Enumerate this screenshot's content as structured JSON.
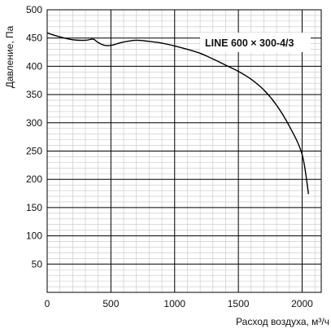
{
  "chart_data": {
    "type": "line",
    "title": "",
    "xlabel": "Расход воздуха, м³/ч",
    "ylabel": "Давление, Па",
    "xlim": [
      0,
      2150
    ],
    "ylim": [
      0,
      500
    ],
    "x_major_ticks": [
      0,
      500,
      1000,
      1500,
      2000
    ],
    "x_minor_step": 100,
    "y_major_ticks": [
      50,
      100,
      150,
      200,
      250,
      300,
      350,
      400,
      450,
      500
    ],
    "y_minor_step": 10,
    "x_tick_labels": [
      "0",
      "500",
      "1000",
      "1500",
      "2000"
    ],
    "y_tick_labels": [
      "50",
      "100",
      "150",
      "200",
      "250",
      "300",
      "350",
      "400",
      "450",
      "500"
    ],
    "grid": true,
    "legend_position": "top-right",
    "series": [
      {
        "name": "LINE 600 × 300-4/3",
        "x": [
          0,
          100,
          200,
          300,
          360,
          400,
          450,
          500,
          550,
          600,
          700,
          800,
          900,
          1000,
          1100,
          1200,
          1300,
          1400,
          1500,
          1600,
          1700,
          1800,
          1900,
          2000,
          2050
        ],
        "y": [
          459,
          452,
          447,
          446,
          448,
          442,
          437,
          437,
          440,
          443,
          446,
          444,
          441,
          436,
          430,
          423,
          413,
          402,
          391,
          377,
          358,
          331,
          294,
          244,
          174
        ]
      }
    ]
  }
}
